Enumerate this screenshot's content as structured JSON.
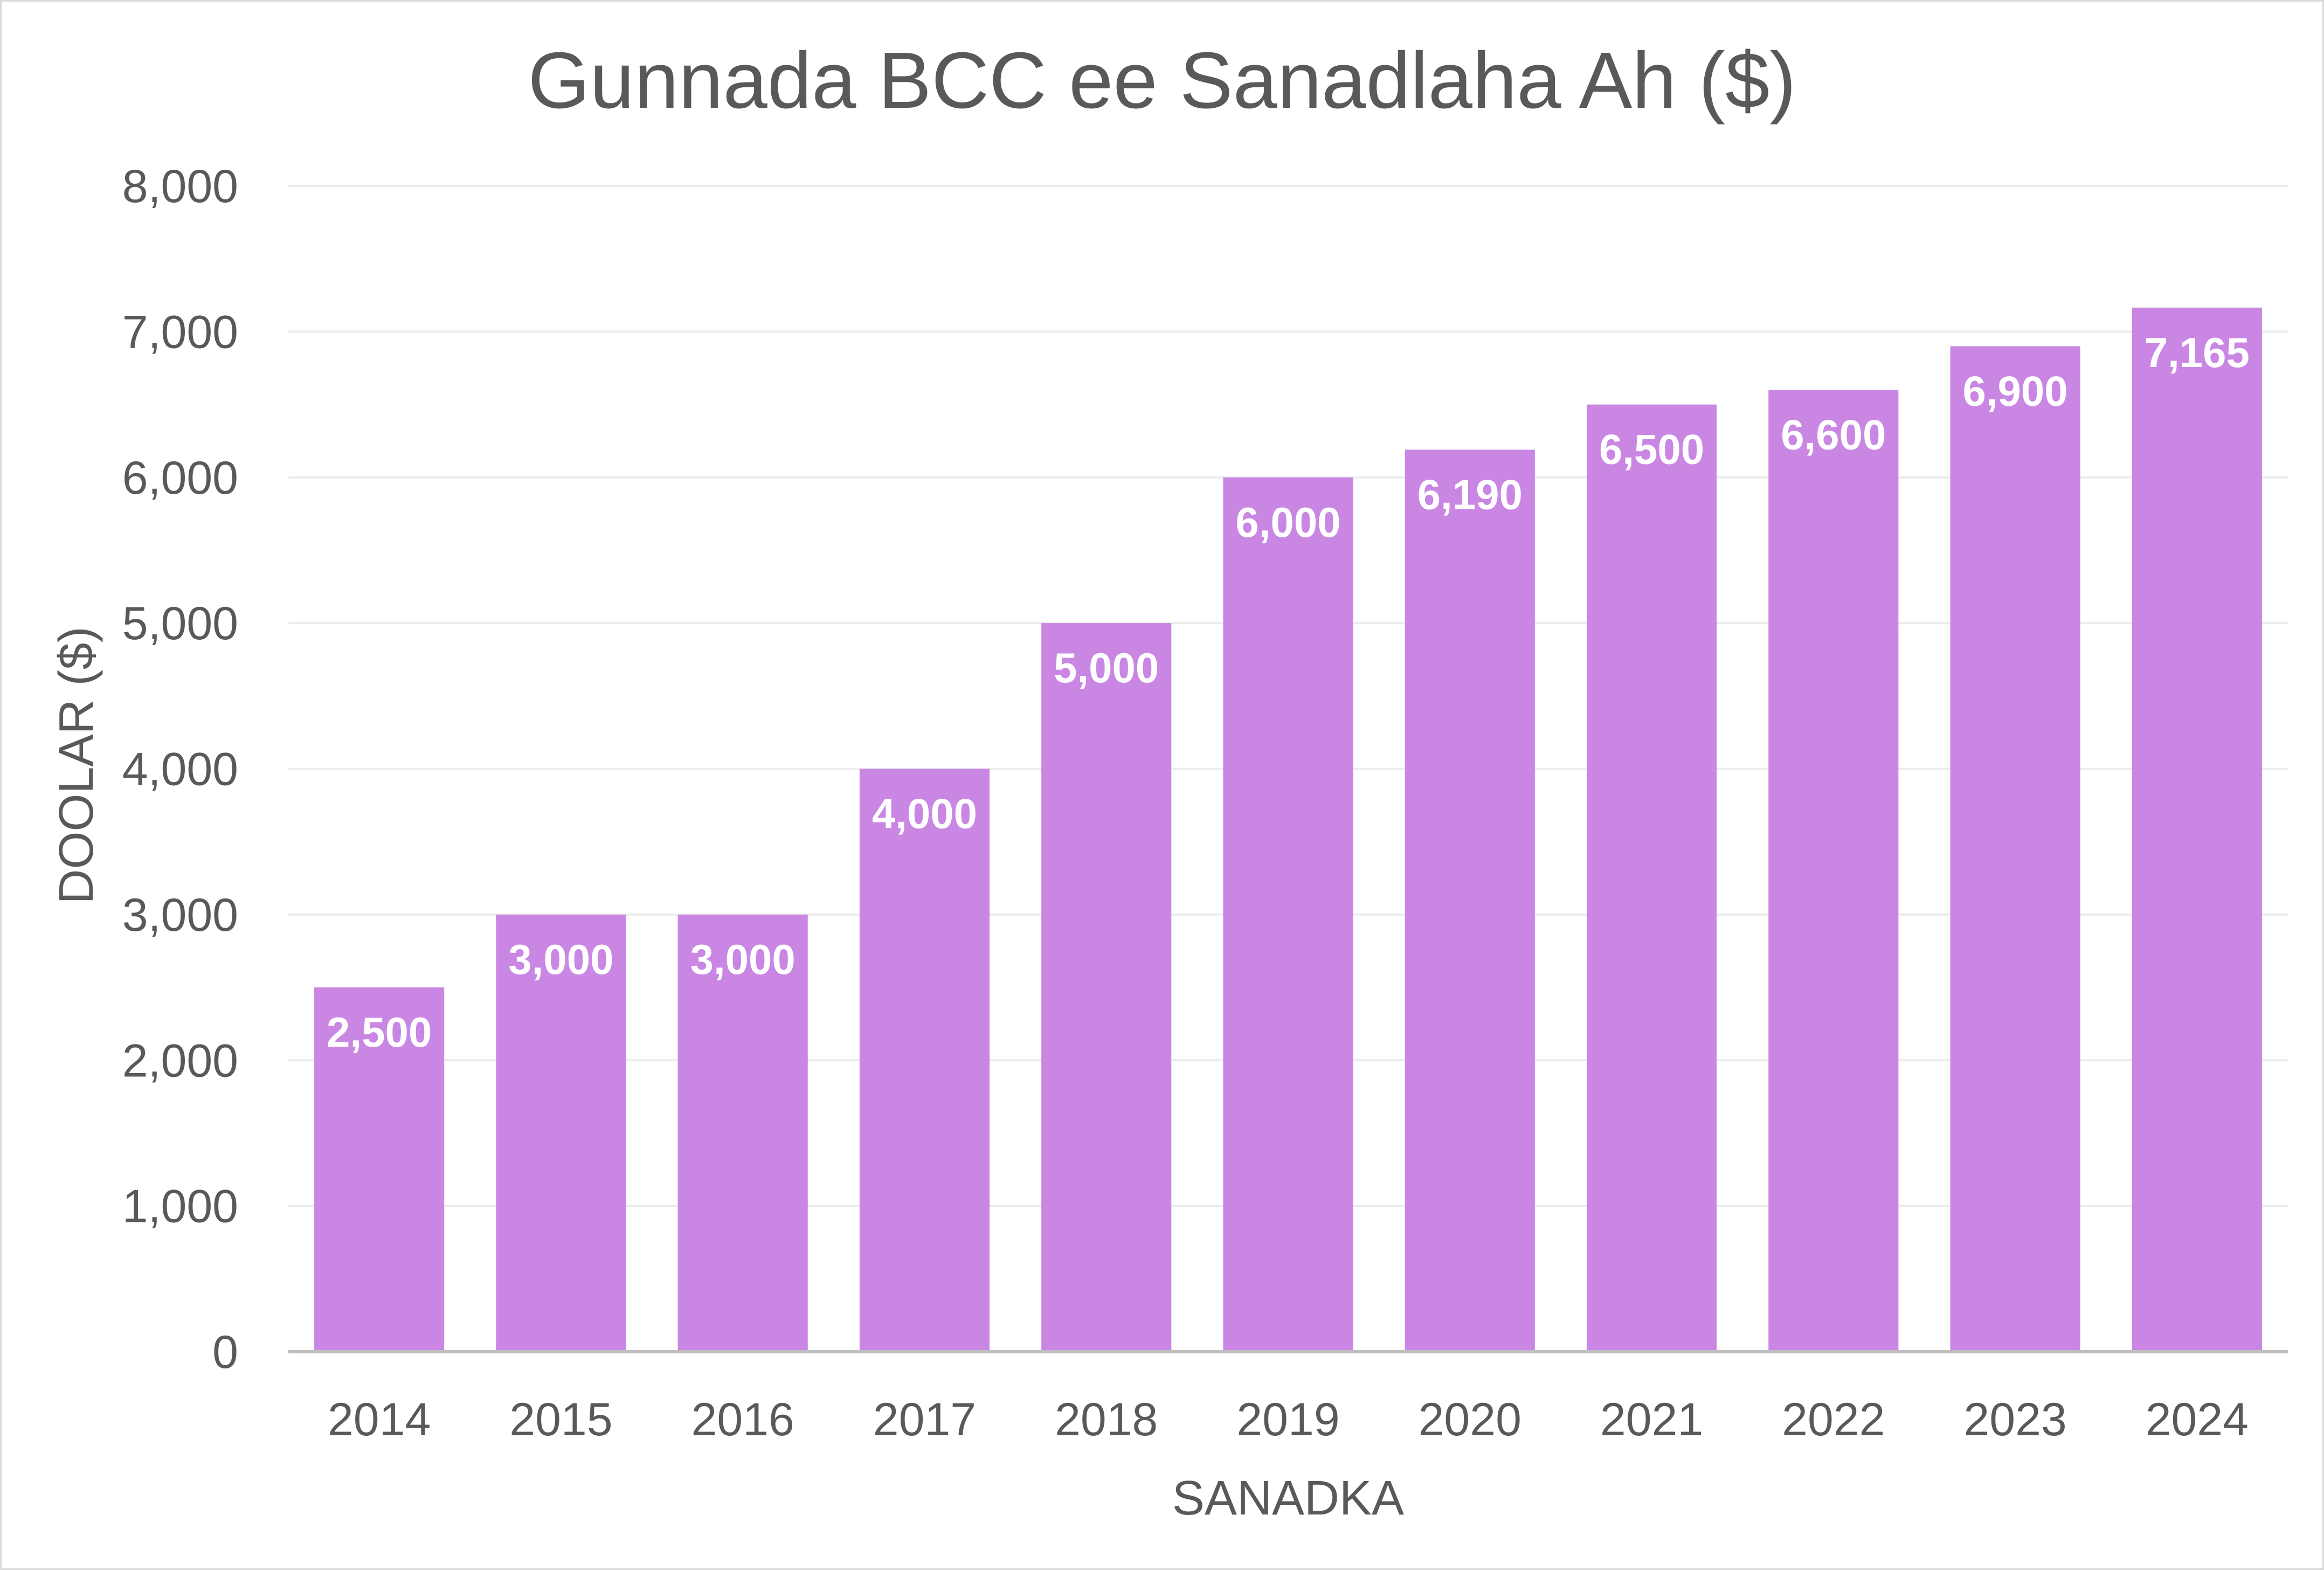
{
  "chart_data": {
    "type": "bar",
    "title": "Gunnada BCC ee Sanadlaha Ah ($)",
    "xlabel": "SANADKA",
    "ylabel": "DOOLAR ($)",
    "categories": [
      "2014",
      "2015",
      "2016",
      "2017",
      "2018",
      "2019",
      "2020",
      "2021",
      "2022",
      "2023",
      "2024"
    ],
    "values": [
      2500,
      3000,
      3000,
      4000,
      5000,
      6000,
      6190,
      6500,
      6600,
      6900,
      7165
    ],
    "data_labels": [
      "2,500",
      "3,000",
      "3,000",
      "4,000",
      "5,000",
      "6,000",
      "6,190",
      "6,500",
      "6,600",
      "6,900",
      "7,165"
    ],
    "ylim": [
      0,
      8000
    ],
    "yticks": [
      "0",
      "1,000",
      "2,000",
      "3,000",
      "4,000",
      "5,000",
      "6,000",
      "7,000",
      "8,000"
    ],
    "bar_color": "#c987e3",
    "grid": true,
    "legend": "none"
  }
}
